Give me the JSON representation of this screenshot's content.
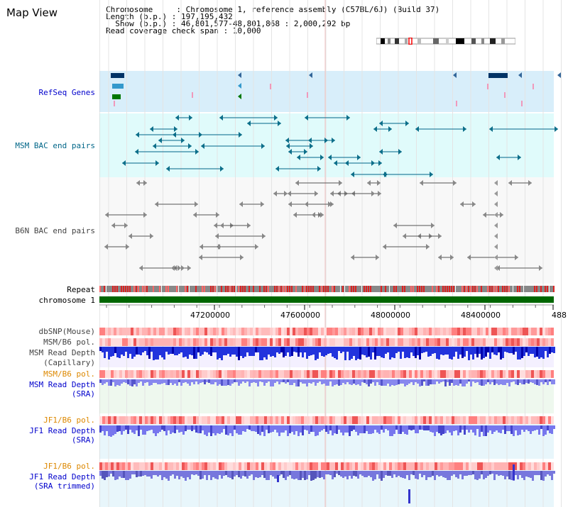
{
  "title": "Map View",
  "info": {
    "line1": "Chromosome     : Chromosome 1, reference assembly (C57BL/6J) (Build 37)",
    "line2": "Length (b.p.) : 197,195,432",
    "line3": "  Show (b.p.) : 46,801,577-48,801,868 : 2,000,292 bp",
    "line4": "Read coverage check span : 10,000"
  },
  "tracks": {
    "refseq": "RefSeq Genes",
    "msm_bac": "MSM BAC end pairs",
    "b6n_bac": "B6N BAC end pairs",
    "repeat": "Repeat",
    "chromosome": "chromosome 1",
    "dbsnp": "dbSNP(Mouse)",
    "msm_b6_pol_1": "MSM/B6 pol.",
    "msm_read_depth_cap_1": "MSM Read Depth",
    "msm_read_depth_cap_2": "(Capillary)",
    "msm_b6_pol_2": "MSM/B6 pol.",
    "msm_read_depth_sra_1": "MSM Read Depth",
    "msm_read_depth_sra_2": "(SRA)",
    "jf1_b6_pol_1": "JF1/B6 pol.",
    "jf1_read_depth_sra_1": "JF1 Read Depth",
    "jf1_read_depth_sra_2": "(SRA)",
    "jf1_b6_pol_2": "JF1/B6 pol.",
    "jf1_read_depth_trim_1": "JF1 Read Depth",
    "jf1_read_depth_trim_2": "(SRA trimmed)"
  },
  "ruler": {
    "ticks": [
      "47200000",
      "47600000",
      "48000000",
      "48400000",
      "488"
    ]
  },
  "colors": {
    "refseq_label": "#0000cc",
    "msm_label": "#006688",
    "b6n_label": "#444444",
    "pol_orange": "#dd8800",
    "depth_blue": "#0000cc",
    "chromosome_green": "#006600",
    "refseq_bg": "#d8eefa",
    "msm_bg": "#e0fbfb",
    "b6n_bg": "#f8f8f8"
  }
}
